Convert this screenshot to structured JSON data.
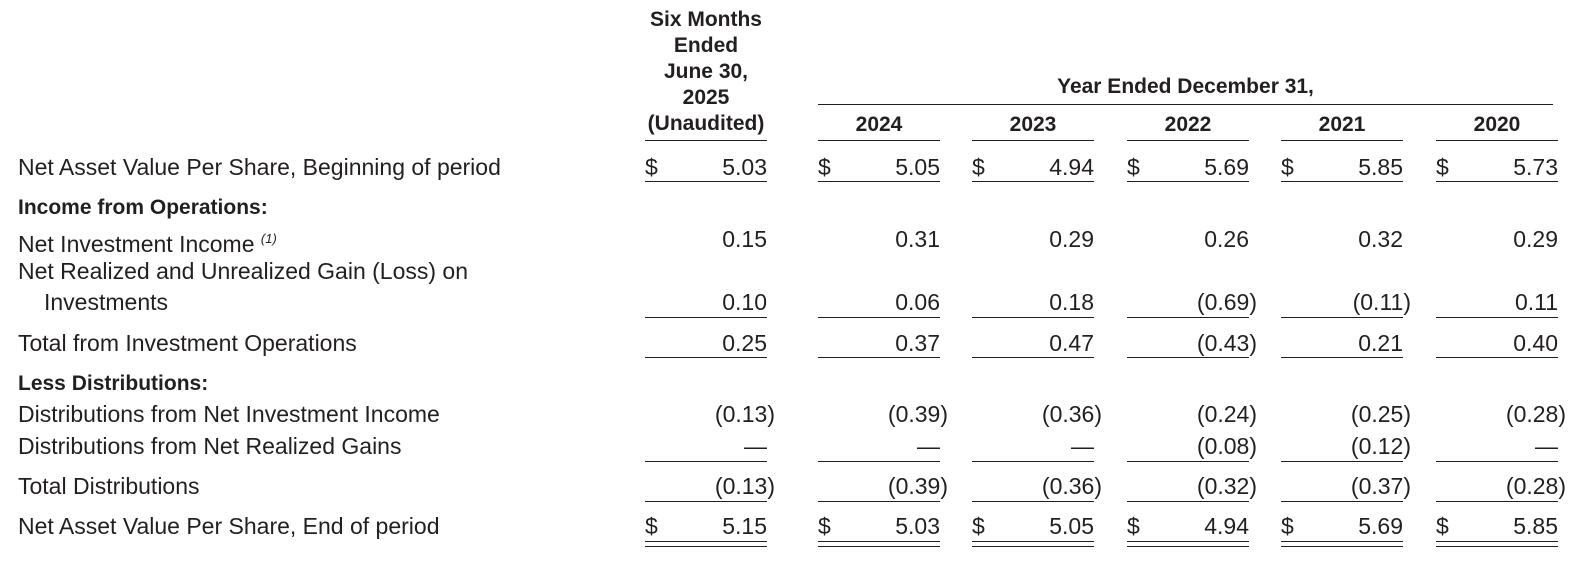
{
  "header": {
    "six_months": [
      "Six Months",
      "Ended",
      "June 30,",
      "2025",
      "(Unaudited)"
    ],
    "year_ended": "Year Ended December 31,",
    "years": [
      "2024",
      "2023",
      "2022",
      "2021",
      "2020"
    ]
  },
  "labels": {
    "nav_begin": "Net Asset Value Per Share, Beginning of period",
    "income_ops": "Income from Operations:",
    "nii": "Net Investment Income",
    "nii_note": "(1)",
    "realized_1": "Net Realized and Unrealized Gain (Loss) on",
    "realized_2": "Investments",
    "total_ops": "Total from Investment Operations",
    "less_dist": "Less Distributions:",
    "dist_nii": "Distributions from Net Investment Income",
    "dist_gains": "Distributions from Net Realized Gains",
    "total_dist": "Total Distributions",
    "nav_end": "Net Asset Value Per Share, End of period"
  },
  "currency_symbol": "$",
  "rows": {
    "nav_begin": [
      "5.03",
      "5.05",
      "4.94",
      "5.69",
      "5.85",
      "5.73"
    ],
    "nii": [
      "0.15",
      "0.31",
      "0.29",
      "0.26",
      "0.32",
      "0.29"
    ],
    "realized": [
      "0.10",
      "0.06",
      "0.18",
      "(0.69)",
      "(0.11)",
      "0.11"
    ],
    "total_ops": [
      "0.25",
      "0.37",
      "0.47",
      "(0.43)",
      "0.21",
      "0.40"
    ],
    "dist_nii": [
      "(0.13)",
      "(0.39)",
      "(0.36)",
      "(0.24)",
      "(0.25)",
      "(0.28)"
    ],
    "dist_gains": [
      "—",
      "—",
      "—",
      "(0.08)",
      "(0.12)",
      "—"
    ],
    "total_dist": [
      "(0.13)",
      "(0.39)",
      "(0.36)",
      "(0.32)",
      "(0.37)",
      "(0.28)"
    ],
    "nav_end": [
      "5.15",
      "5.03",
      "5.05",
      "4.94",
      "5.69",
      "5.85"
    ]
  }
}
